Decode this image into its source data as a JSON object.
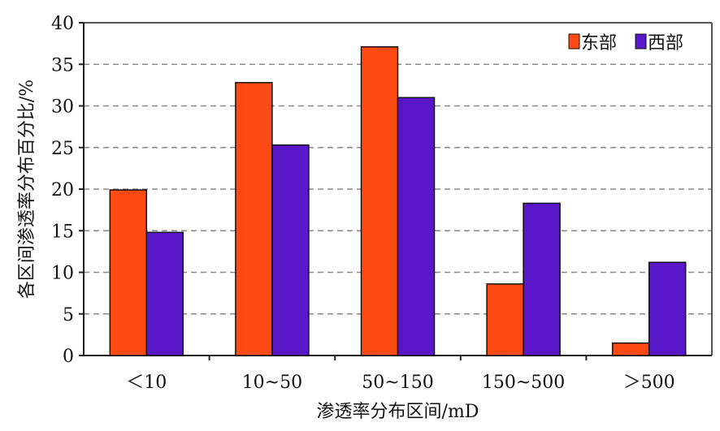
{
  "chart_data": {
    "type": "bar",
    "categories": [
      "＜10",
      "10~50",
      "50~150",
      "150~500",
      "＞500"
    ],
    "series": [
      {
        "name": "东部",
        "color": "#ff4a14",
        "values": [
          19.9,
          32.8,
          37.1,
          8.6,
          1.5
        ]
      },
      {
        "name": "西部",
        "color": "#5a17c9",
        "values": [
          14.8,
          25.3,
          31.0,
          18.3,
          11.2
        ]
      }
    ],
    "xlabel": "渗透率分布区间/mD",
    "ylabel": "各区间渗透率分布百分比/%",
    "ylim": [
      0,
      40
    ],
    "yticks": [
      0,
      5,
      10,
      15,
      20,
      25,
      30,
      35,
      40
    ],
    "grid": true,
    "legend_position": "top-right"
  }
}
